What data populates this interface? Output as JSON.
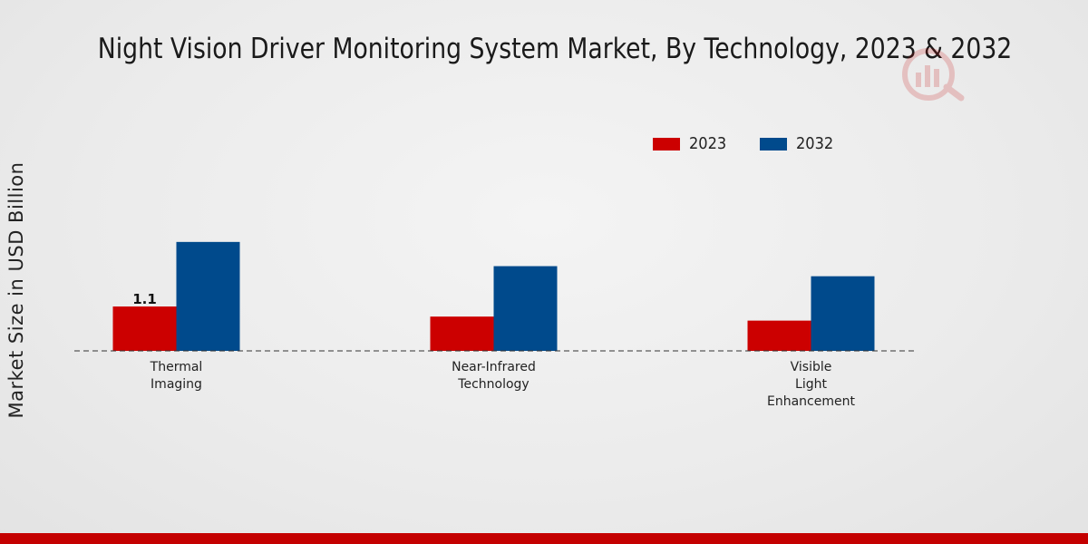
{
  "chart_data": {
    "type": "bar",
    "title": "Night Vision Driver Monitoring System Market, By Technology, 2023 & 2032",
    "xlabel": "",
    "ylabel": "Market Size in USD Billion",
    "categories": [
      [
        "Thermal",
        "Imaging"
      ],
      [
        "Near-Infrared",
        "Technology"
      ],
      [
        "Visible",
        "Light",
        "Enhancement"
      ]
    ],
    "series": [
      {
        "name": "2023",
        "color": "#cc0000",
        "values": [
          1.1,
          0.85,
          0.75
        ]
      },
      {
        "name": "2032",
        "color": "#004a8c",
        "values": [
          2.7,
          2.1,
          1.85
        ]
      }
    ],
    "data_labels": [
      {
        "series": 0,
        "index": 0,
        "text": "1.1"
      }
    ],
    "ylim": [
      0,
      6
    ],
    "grid": false,
    "legend": "top-right"
  }
}
